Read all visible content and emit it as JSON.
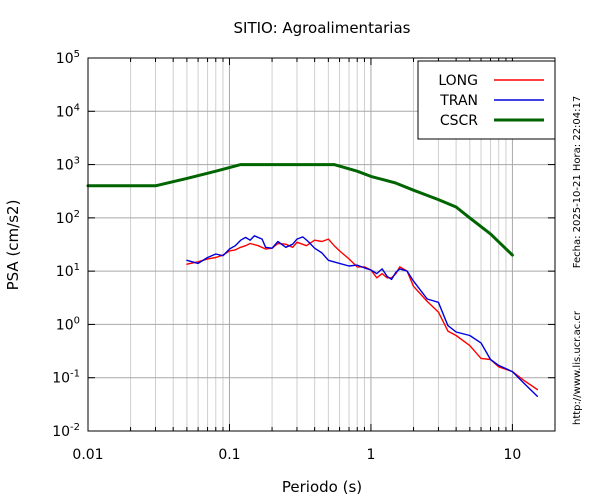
{
  "chart_data": {
    "type": "line",
    "title": "SITIO: Agroalimentarias",
    "xlabel": "Periodo (s)",
    "ylabel": "PSA (cm/s2)",
    "x_scale": "log",
    "y_scale": "log",
    "xlim": [
      0.01,
      20
    ],
    "ylim": [
      0.01,
      100000
    ],
    "grid": true,
    "legend_position": "top-right",
    "x_ticks": [
      {
        "value": 0.01,
        "label": "0.01"
      },
      {
        "value": 0.1,
        "label": "0.1"
      },
      {
        "value": 1,
        "label": "1"
      },
      {
        "value": 10,
        "label": "10"
      }
    ],
    "y_ticks": [
      {
        "value": 0.01,
        "base": "10",
        "exp": "-2"
      },
      {
        "value": 0.1,
        "base": "10",
        "exp": "-1"
      },
      {
        "value": 1,
        "base": "10",
        "exp": "0"
      },
      {
        "value": 10,
        "base": "10",
        "exp": "1"
      },
      {
        "value": 100,
        "base": "10",
        "exp": "2"
      },
      {
        "value": 1000,
        "base": "10",
        "exp": "3"
      },
      {
        "value": 10000,
        "base": "10",
        "exp": "4"
      },
      {
        "value": 100000,
        "base": "10",
        "exp": "5"
      }
    ],
    "side_labels": {
      "date": "Fecha: 2025-10-21 Hora: 22:04:17",
      "url": "http://www.lis.ucr.ac.cr"
    },
    "series": [
      {
        "name": "LONG",
        "color": "#ff0000",
        "stroke": "thin",
        "points": [
          [
            0.05,
            13.5
          ],
          [
            0.06,
            15
          ],
          [
            0.07,
            17
          ],
          [
            0.08,
            18
          ],
          [
            0.09,
            20
          ],
          [
            0.1,
            24
          ],
          [
            0.11,
            25
          ],
          [
            0.12,
            28
          ],
          [
            0.13,
            30
          ],
          [
            0.14,
            33
          ],
          [
            0.16,
            30
          ],
          [
            0.18,
            26
          ],
          [
            0.2,
            27
          ],
          [
            0.22,
            33
          ],
          [
            0.25,
            32
          ],
          [
            0.28,
            28
          ],
          [
            0.3,
            35
          ],
          [
            0.35,
            30
          ],
          [
            0.4,
            38
          ],
          [
            0.45,
            36
          ],
          [
            0.5,
            40
          ],
          [
            0.55,
            30
          ],
          [
            0.6,
            24
          ],
          [
            0.7,
            17
          ],
          [
            0.8,
            12
          ],
          [
            0.9,
            12
          ],
          [
            1.0,
            10.5
          ],
          [
            1.1,
            7.5
          ],
          [
            1.2,
            9
          ],
          [
            1.3,
            7.5
          ],
          [
            1.4,
            7.5
          ],
          [
            1.5,
            9
          ],
          [
            1.6,
            12
          ],
          [
            1.8,
            10
          ],
          [
            2.0,
            5.2
          ],
          [
            2.5,
            2.7
          ],
          [
            3.0,
            1.7
          ],
          [
            3.5,
            0.75
          ],
          [
            4.0,
            0.62
          ],
          [
            5.0,
            0.4
          ],
          [
            6.0,
            0.23
          ],
          [
            7.0,
            0.22
          ],
          [
            8.0,
            0.16
          ],
          [
            10.0,
            0.13
          ],
          [
            12.0,
            0.09
          ],
          [
            15.0,
            0.06
          ]
        ]
      },
      {
        "name": "TRAN",
        "color": "#0000dd",
        "stroke": "thin",
        "points": [
          [
            0.05,
            16
          ],
          [
            0.06,
            14
          ],
          [
            0.07,
            18
          ],
          [
            0.08,
            21
          ],
          [
            0.09,
            19.5
          ],
          [
            0.1,
            26
          ],
          [
            0.11,
            30
          ],
          [
            0.12,
            38
          ],
          [
            0.13,
            43
          ],
          [
            0.14,
            38
          ],
          [
            0.15,
            46
          ],
          [
            0.17,
            40
          ],
          [
            0.18,
            28
          ],
          [
            0.2,
            27
          ],
          [
            0.22,
            36
          ],
          [
            0.25,
            28
          ],
          [
            0.28,
            32
          ],
          [
            0.3,
            40
          ],
          [
            0.33,
            44
          ],
          [
            0.36,
            36
          ],
          [
            0.4,
            27
          ],
          [
            0.45,
            22
          ],
          [
            0.5,
            16
          ],
          [
            0.6,
            14
          ],
          [
            0.7,
            12.5
          ],
          [
            0.8,
            13
          ],
          [
            0.9,
            11.5
          ],
          [
            1.0,
            10.5
          ],
          [
            1.1,
            9
          ],
          [
            1.2,
            11
          ],
          [
            1.3,
            8
          ],
          [
            1.4,
            7
          ],
          [
            1.5,
            9.5
          ],
          [
            1.6,
            11
          ],
          [
            1.8,
            10
          ],
          [
            2.0,
            6.5
          ],
          [
            2.5,
            3
          ],
          [
            3.0,
            2.6
          ],
          [
            3.5,
            0.95
          ],
          [
            4.0,
            0.72
          ],
          [
            5.0,
            0.62
          ],
          [
            6.0,
            0.45
          ],
          [
            7.0,
            0.22
          ],
          [
            8.0,
            0.17
          ],
          [
            10.0,
            0.13
          ],
          [
            12.0,
            0.08
          ],
          [
            15.0,
            0.045
          ]
        ]
      },
      {
        "name": "CSCR",
        "color": "#006400",
        "stroke": "thick",
        "points": [
          [
            0.01,
            400
          ],
          [
            0.03,
            400
          ],
          [
            0.05,
            550
          ],
          [
            0.08,
            750
          ],
          [
            0.12,
            1000
          ],
          [
            0.2,
            1000
          ],
          [
            0.4,
            1000
          ],
          [
            0.55,
            1000
          ],
          [
            0.8,
            750
          ],
          [
            1.0,
            600
          ],
          [
            1.5,
            450
          ],
          [
            2.0,
            330
          ],
          [
            3.0,
            220
          ],
          [
            4.0,
            160
          ],
          [
            5.0,
            100
          ],
          [
            7.0,
            50
          ],
          [
            10.0,
            20
          ]
        ]
      }
    ]
  }
}
